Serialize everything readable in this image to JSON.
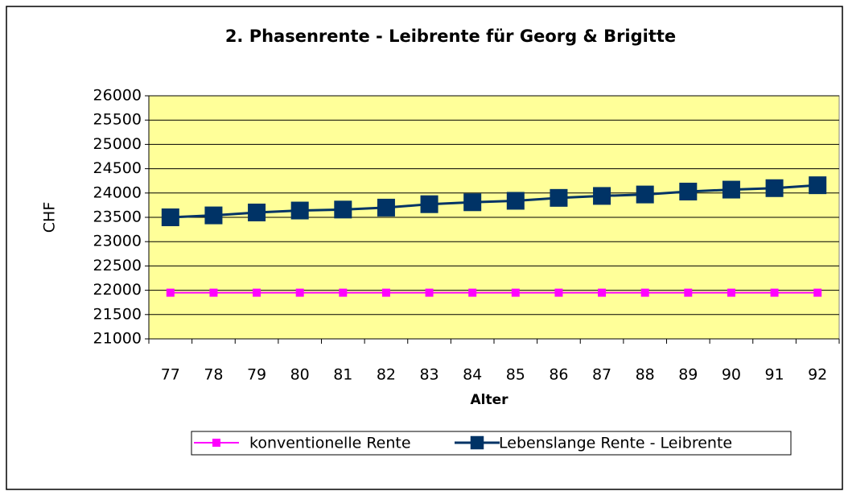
{
  "chart_data": {
    "type": "line",
    "title": "2. Phasenrente - Leibrente für Georg & Brigitte",
    "xlabel": "Alter",
    "ylabel": "CHF",
    "categories": [
      "77",
      "78",
      "79",
      "80",
      "81",
      "82",
      "83",
      "84",
      "85",
      "86",
      "87",
      "88",
      "89",
      "90",
      "91",
      "92"
    ],
    "series": [
      {
        "name": "konventionelle Rente",
        "color": "#ff00ff",
        "values": [
          21950,
          21950,
          21950,
          21950,
          21950,
          21950,
          21950,
          21950,
          21950,
          21950,
          21950,
          21950,
          21950,
          21950,
          21950,
          21950
        ]
      },
      {
        "name": "Lebenslange Rente - Leibrente",
        "color": "#003366",
        "values": [
          23500,
          23540,
          23600,
          23640,
          23660,
          23700,
          23770,
          23810,
          23840,
          23900,
          23940,
          23970,
          24030,
          24070,
          24100,
          24160
        ]
      }
    ],
    "ylim": [
      21000,
      26000
    ],
    "yticks": [
      21000,
      21500,
      22000,
      22500,
      23000,
      23500,
      24000,
      24500,
      25000,
      25500,
      26000
    ],
    "grid": true,
    "plot_background": "#ffff99",
    "legend": "bottom"
  }
}
